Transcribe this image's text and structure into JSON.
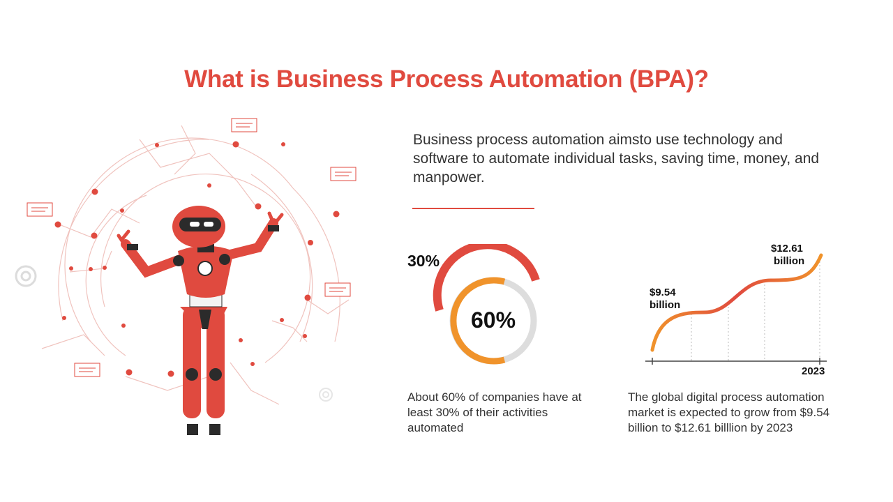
{
  "header": {
    "title": "What is Business Process Automation (BPA)?"
  },
  "intro": {
    "text": "Business process automation aimsto use technology and software to automate individual tasks, saving time, money, and manpower."
  },
  "stats": {
    "donut": {
      "outer_label": "30%",
      "inner_label": "60%",
      "outer_value": 30,
      "inner_value": 60,
      "caption": "About 60% of companies have at least 30% of their activities automated"
    },
    "growth": {
      "start_label_line1": "$9.54",
      "start_label_line2": "billion",
      "end_label_line1": "$12.61",
      "end_label_line2": "billion",
      "year_label": "2023",
      "caption": "The global digital process automation market is expected to grow from $9.54 billion to $12.61 billlion by 2023"
    }
  },
  "chart_data": {
    "type": "line",
    "series": [
      {
        "values": [
          9.54,
          12.61
        ]
      }
    ],
    "x": [
      "",
      "2023"
    ],
    "title": "",
    "xlabel": "",
    "ylabel": ""
  },
  "icons": [
    "robot-illustration",
    "gear-icon",
    "note-icon"
  ],
  "colors": {
    "accent": "#e04a3f",
    "orange": "#f0932b",
    "gray": "#dddddd"
  }
}
